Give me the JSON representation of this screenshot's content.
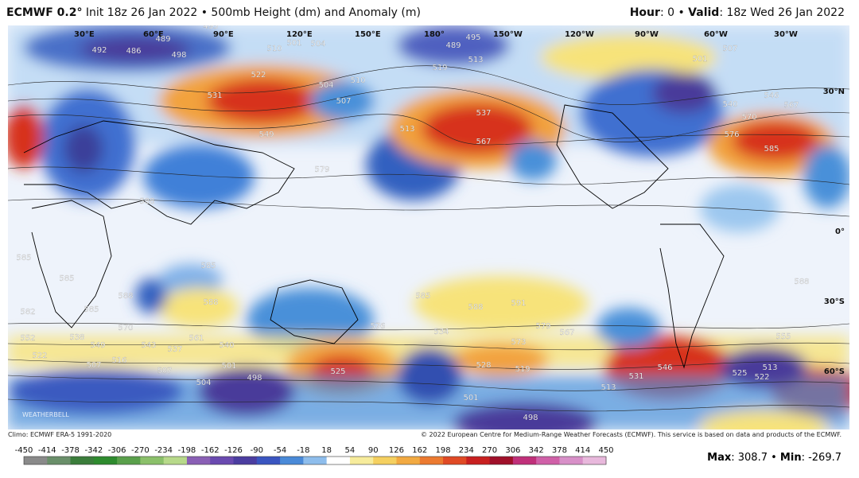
{
  "header": {
    "brand": "ECMWF 0.2°",
    "title": "Init 18z 26 Jan 2022 • 500mb Height (dm) and Anomaly (m)",
    "hour_key": "Hour",
    "hour_value": ": 0 • ",
    "valid_key": "Valid",
    "valid_value": ": 18z Wed 26 Jan 2022"
  },
  "map": {
    "longitudes": [
      "30°E",
      "60°E",
      "90°E",
      "120°E",
      "150°E",
      "180°",
      "150°W",
      "120°W",
      "90°W",
      "60°W",
      "30°W"
    ],
    "latitudes": [
      "30°N",
      "0°",
      "30°S",
      "60°S"
    ],
    "watermark": "WEATHERBELL",
    "contour_labels": [
      "489",
      "486",
      "492",
      "495",
      "498",
      "501",
      "504",
      "510",
      "489",
      "495",
      "513",
      "519",
      "507",
      "501",
      "522",
      "531",
      "504",
      "510",
      "507",
      "513",
      "537",
      "567",
      "540",
      "546",
      "567",
      "570",
      "576",
      "585",
      "549",
      "579",
      "588",
      "585",
      "585",
      "585",
      "588",
      "588",
      "582",
      "585",
      "585",
      "588",
      "591",
      "588",
      "570",
      "552",
      "538",
      "549",
      "543",
      "537",
      "561",
      "540",
      "522",
      "507",
      "516",
      "507",
      "501",
      "498",
      "504",
      "525",
      "576",
      "534",
      "573",
      "579",
      "567",
      "528",
      "519",
      "546",
      "531",
      "513",
      "501",
      "498",
      "555",
      "513",
      "522",
      "525"
    ]
  },
  "footer": {
    "climo": "Climo: ECMWF ERA-5 1991-2020",
    "copyright": "© 2022 European Centre for Medium-Range Weather Forecasts (ECMWF). This service is based on data and products of the ECMWF.",
    "colorbar_ticks": [
      -450,
      -414,
      -378,
      -342,
      -306,
      -270,
      -234,
      -198,
      -162,
      -126,
      -90,
      -54,
      -18,
      18,
      54,
      90,
      126,
      162,
      198,
      234,
      270,
      306,
      342,
      378,
      414,
      450
    ],
    "max_key": "Max",
    "max_value": ": 308.7 • ",
    "min_key": "Min",
    "min_value": ": -269.7"
  }
}
